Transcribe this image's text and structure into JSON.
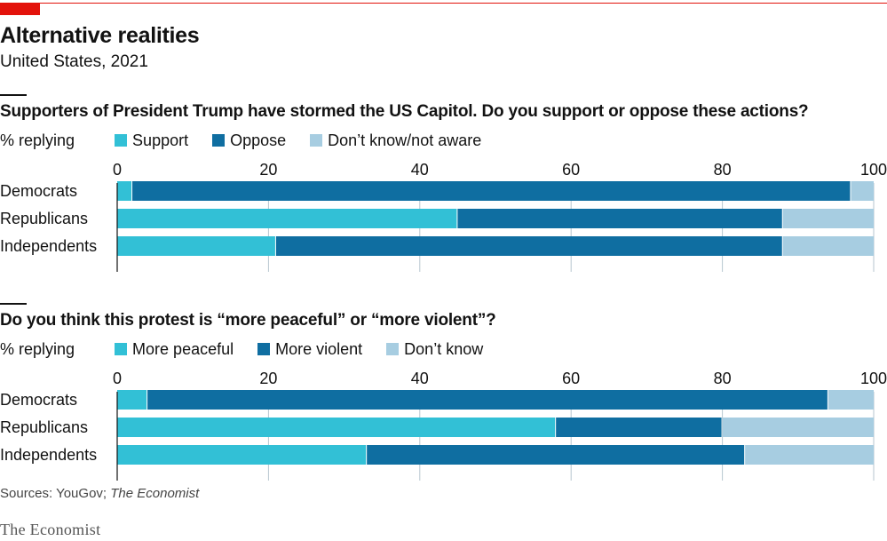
{
  "header": {
    "title": "Alternative realities",
    "subtitle": "United States, 2021"
  },
  "colors": {
    "accent": "#e3120b",
    "series": [
      "#32c0d6",
      "#0f6ea1",
      "#a7cde1"
    ]
  },
  "chart_data": [
    {
      "type": "bar",
      "orientation": "horizontal",
      "stacked": true,
      "title": "Supporters of President Trump have stormed the US Capitol. Do you support or oppose these actions?",
      "unit_label": "% replying",
      "categories": [
        "Democrats",
        "Republicans",
        "Independents"
      ],
      "series": [
        {
          "name": "Support",
          "values": [
            2,
            45,
            21
          ]
        },
        {
          "name": "Oppose",
          "values": [
            95,
            43,
            67
          ]
        },
        {
          "name": "Don’t know/not aware",
          "values": [
            3,
            12,
            12
          ]
        }
      ],
      "xlim": [
        0,
        100
      ],
      "ticks": [
        "0",
        "20",
        "40",
        "60",
        "80",
        "100"
      ],
      "grid": true,
      "legend_position": "top"
    },
    {
      "type": "bar",
      "orientation": "horizontal",
      "stacked": true,
      "title": "Do you think this protest is “more peaceful” or “more violent”?",
      "unit_label": "% replying",
      "categories": [
        "Democrats",
        "Republicans",
        "Independents"
      ],
      "series": [
        {
          "name": "More peaceful",
          "values": [
            4,
            58,
            33
          ]
        },
        {
          "name": "More violent",
          "values": [
            90,
            22,
            50
          ]
        },
        {
          "name": "Don’t know",
          "values": [
            6,
            20,
            17
          ]
        }
      ],
      "xlim": [
        0,
        100
      ],
      "ticks": [
        "0",
        "20",
        "40",
        "60",
        "80",
        "100"
      ],
      "grid": true,
      "legend_position": "top"
    }
  ],
  "footer": {
    "source_prefix": "Sources: YouGov; ",
    "source_italic": "The Economist",
    "brand": "The Economist"
  }
}
